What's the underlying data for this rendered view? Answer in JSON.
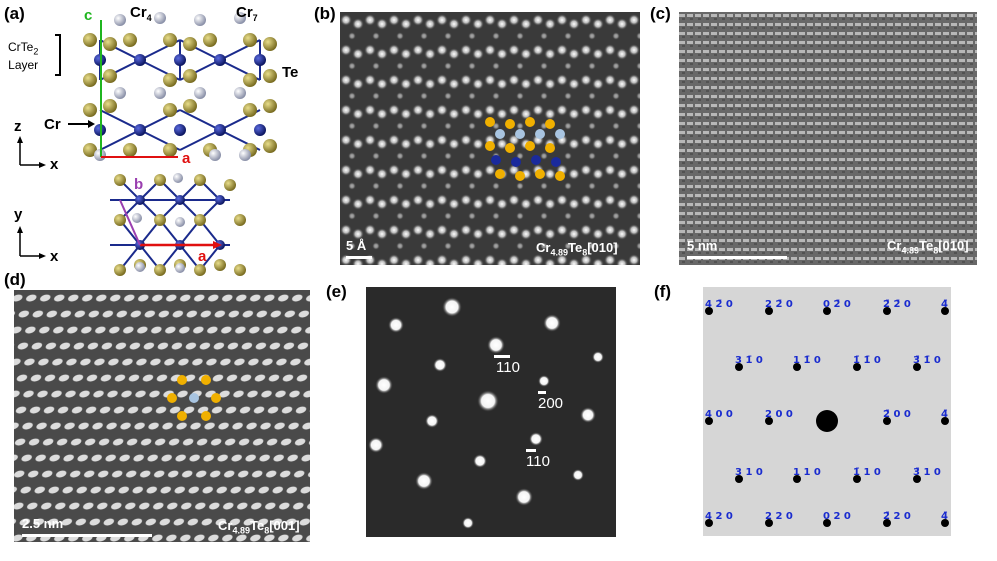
{
  "panels": {
    "a": {
      "label": "(a)",
      "c_axis": "c",
      "a_axis": "a",
      "b_axis": "b",
      "cr4": "Cr",
      "cr4_sub": "4",
      "cr7": "Cr",
      "cr7_sub": "7",
      "layer_line1": "CrTe",
      "layer_sub": "2",
      "layer_line2": "Layer",
      "te": "Te",
      "cr": "Cr",
      "z": "z",
      "x1": "x",
      "y": "y",
      "x2": "x"
    },
    "b": {
      "label": "(b)",
      "scale": "5 Å",
      "formula_pre": "Cr",
      "formula_sub1": "4.89",
      "formula_mid": "Te",
      "formula_sub2": "8",
      "formula_post": "[010]"
    },
    "c": {
      "label": "(c)",
      "scale": "5 nm",
      "formula_pre": "Cr",
      "formula_sub1": "4.89",
      "formula_mid": "Te",
      "formula_sub2": "8",
      "formula_post": "[010]"
    },
    "d": {
      "label": "(d)",
      "scale": "2.5 nm",
      "formula_pre": "Cr",
      "formula_sub1": "4.89",
      "formula_mid": "Te",
      "formula_sub2": "8",
      "formula_post": "[001]"
    },
    "e": {
      "label": "(e)",
      "spot1": "110",
      "spot2": "200",
      "spot3": "110"
    },
    "f": {
      "label": "(f)",
      "rows": [
        [
          "4 2̄ 0",
          "2 2̄ 0",
          "0 2̄ 0",
          "2̄ 2̄ 0",
          "4̄"
        ],
        [
          "3 1̄ 0",
          "1 1̄ 0",
          "1̄ 1̄ 0",
          "3̄ 1̄ 0"
        ],
        [
          "4 0 0",
          "2 0 0",
          "2̄ 0 0",
          "4̄"
        ],
        [
          "3 1 0",
          "1 1 0",
          "1̄ 1 0",
          "3̄ 1 0"
        ],
        [
          "4 2 0",
          "2 2 0",
          "0 2 0",
          "2̄ 2 0",
          "4̄"
        ]
      ]
    }
  },
  "colors": {
    "cr": "#1a2a8c",
    "te": "#a89a3c",
    "cr_int": "#d8dde8",
    "axis_c": "#1fb51f",
    "axis_a": "#e01010",
    "axis_b": "#9a3fb0",
    "index_blue": "#1a2ccf"
  }
}
